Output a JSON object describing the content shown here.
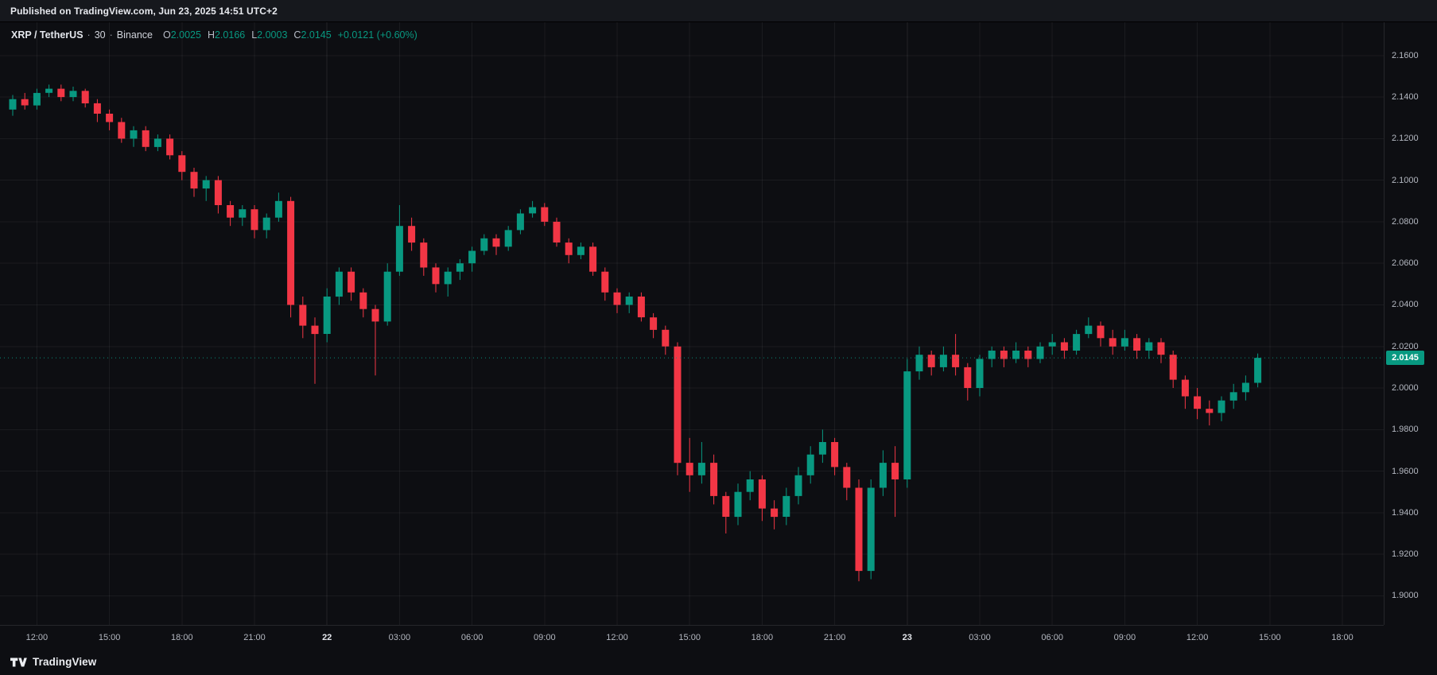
{
  "topbar": {
    "published_text": "Published on TradingView.com, Jun 23, 2025 14:51 UTC+2"
  },
  "header": {
    "symbol": "XRP / TetherUS",
    "separator": "·",
    "interval": "30",
    "exchange": "Binance",
    "ohlc": {
      "o_label": "O",
      "o_value": "2.0025",
      "h_label": "H",
      "h_value": "2.0166",
      "l_label": "L",
      "l_value": "2.0003",
      "c_label": "C",
      "c_value": "2.0145",
      "change_value": "+0.0121 (+0.60%)"
    }
  },
  "footer": {
    "logo_text": "TradingView"
  },
  "colors": {
    "up": "#089981",
    "down": "#f23645",
    "background": "#0d0e12",
    "topbar_bg": "#16181d",
    "grid": "rgba(255,255,255,0.055)",
    "grid_major": "rgba(255,255,255,0.09)",
    "axis_text": "#b4b8c1",
    "badge_bg": "#089981"
  },
  "time_scale": {
    "labels": [
      {
        "text": "12:00",
        "idx": 2,
        "major": false
      },
      {
        "text": "15:00",
        "idx": 8,
        "major": false
      },
      {
        "text": "18:00",
        "idx": 14,
        "major": false
      },
      {
        "text": "21:00",
        "idx": 20,
        "major": false
      },
      {
        "text": "22",
        "idx": 26,
        "major": true
      },
      {
        "text": "03:00",
        "idx": 32,
        "major": false
      },
      {
        "text": "06:00",
        "idx": 38,
        "major": false
      },
      {
        "text": "09:00",
        "idx": 44,
        "major": false
      },
      {
        "text": "12:00",
        "idx": 50,
        "major": false
      },
      {
        "text": "15:00",
        "idx": 56,
        "major": false
      },
      {
        "text": "18:00",
        "idx": 62,
        "major": false
      },
      {
        "text": "21:00",
        "idx": 68,
        "major": false
      },
      {
        "text": "23",
        "idx": 74,
        "major": true
      },
      {
        "text": "03:00",
        "idx": 80,
        "major": false
      },
      {
        "text": "06:00",
        "idx": 86,
        "major": false
      },
      {
        "text": "09:00",
        "idx": 92,
        "major": false
      },
      {
        "text": "12:00",
        "idx": 98,
        "major": false
      },
      {
        "text": "15:00",
        "idx": 104,
        "major": false
      },
      {
        "text": "18:00",
        "idx": 110,
        "major": false
      }
    ]
  },
  "chart_data": {
    "type": "candlestick",
    "title": "XRP / TetherUS · 30 · Binance",
    "bar_interval_minutes": 30,
    "last_bar_ohlc": {
      "open": 2.0025,
      "high": 2.0166,
      "low": 2.0003,
      "close": 2.0145
    },
    "last_price": {
      "text": "2.0145",
      "value": 2.0145
    },
    "change": {
      "abs": "+0.0121",
      "pct": "+0.60%"
    },
    "price_axis": {
      "view_max": 2.176,
      "view_min": 1.886,
      "ticks": [
        {
          "text": "2.1600",
          "value": 2.16
        },
        {
          "text": "2.1400",
          "value": 2.14
        },
        {
          "text": "2.1200",
          "value": 2.12
        },
        {
          "text": "2.1000",
          "value": 2.1
        },
        {
          "text": "2.0800",
          "value": 2.08
        },
        {
          "text": "2.0600",
          "value": 2.06
        },
        {
          "text": "2.0400",
          "value": 2.04
        },
        {
          "text": "2.0200",
          "value": 2.02
        },
        {
          "text": "2.0000",
          "value": 2.0
        },
        {
          "text": "1.9800",
          "value": 1.98
        },
        {
          "text": "1.9600",
          "value": 1.96
        },
        {
          "text": "1.9400",
          "value": 1.94
        },
        {
          "text": "1.9200",
          "value": 1.92
        },
        {
          "text": "1.9000",
          "value": 1.9
        }
      ]
    },
    "candles_format": [
      "open",
      "high",
      "low",
      "close"
    ],
    "candles": [
      [
        2.134,
        2.141,
        2.131,
        2.139
      ],
      [
        2.139,
        2.142,
        2.134,
        2.136
      ],
      [
        2.136,
        2.144,
        2.134,
        2.142
      ],
      [
        2.142,
        2.146,
        2.14,
        2.144
      ],
      [
        2.144,
        2.146,
        2.138,
        2.14
      ],
      [
        2.14,
        2.145,
        2.138,
        2.143
      ],
      [
        2.143,
        2.144,
        2.135,
        2.137
      ],
      [
        2.137,
        2.139,
        2.128,
        2.132
      ],
      [
        2.132,
        2.134,
        2.124,
        2.128
      ],
      [
        2.128,
        2.13,
        2.118,
        2.12
      ],
      [
        2.12,
        2.126,
        2.116,
        2.124
      ],
      [
        2.124,
        2.126,
        2.114,
        2.116
      ],
      [
        2.116,
        2.122,
        2.114,
        2.12
      ],
      [
        2.12,
        2.122,
        2.11,
        2.112
      ],
      [
        2.112,
        2.114,
        2.1,
        2.104
      ],
      [
        2.104,
        2.106,
        2.092,
        2.096
      ],
      [
        2.096,
        2.102,
        2.09,
        2.1
      ],
      [
        2.1,
        2.102,
        2.084,
        2.088
      ],
      [
        2.088,
        2.09,
        2.078,
        2.082
      ],
      [
        2.082,
        2.088,
        2.078,
        2.086
      ],
      [
        2.086,
        2.088,
        2.072,
        2.076
      ],
      [
        2.076,
        2.084,
        2.072,
        2.082
      ],
      [
        2.082,
        2.094,
        2.08,
        2.09
      ],
      [
        2.09,
        2.092,
        2.034,
        2.04
      ],
      [
        2.04,
        2.044,
        2.024,
        2.03
      ],
      [
        2.03,
        2.034,
        2.002,
        2.026
      ],
      [
        2.026,
        2.048,
        2.022,
        2.044
      ],
      [
        2.044,
        2.058,
        2.04,
        2.056
      ],
      [
        2.056,
        2.058,
        2.042,
        2.046
      ],
      [
        2.046,
        2.048,
        2.034,
        2.038
      ],
      [
        2.038,
        2.04,
        2.006,
        2.032
      ],
      [
        2.032,
        2.06,
        2.03,
        2.056
      ],
      [
        2.056,
        2.088,
        2.054,
        2.078
      ],
      [
        2.078,
        2.082,
        2.066,
        2.07
      ],
      [
        2.07,
        2.072,
        2.054,
        2.058
      ],
      [
        2.058,
        2.06,
        2.046,
        2.05
      ],
      [
        2.05,
        2.058,
        2.044,
        2.056
      ],
      [
        2.056,
        2.062,
        2.052,
        2.06
      ],
      [
        2.06,
        2.068,
        2.056,
        2.066
      ],
      [
        2.066,
        2.074,
        2.064,
        2.072
      ],
      [
        2.072,
        2.074,
        2.064,
        2.068
      ],
      [
        2.068,
        2.078,
        2.066,
        2.076
      ],
      [
        2.076,
        2.086,
        2.074,
        2.084
      ],
      [
        2.084,
        2.09,
        2.082,
        2.087
      ],
      [
        2.087,
        2.089,
        2.078,
        2.08
      ],
      [
        2.08,
        2.082,
        2.068,
        2.07
      ],
      [
        2.07,
        2.072,
        2.06,
        2.064
      ],
      [
        2.064,
        2.07,
        2.062,
        2.068
      ],
      [
        2.068,
        2.07,
        2.054,
        2.056
      ],
      [
        2.056,
        2.058,
        2.042,
        2.046
      ],
      [
        2.046,
        2.048,
        2.036,
        2.04
      ],
      [
        2.04,
        2.046,
        2.036,
        2.044
      ],
      [
        2.044,
        2.046,
        2.032,
        2.034
      ],
      [
        2.034,
        2.036,
        2.024,
        2.028
      ],
      [
        2.028,
        2.03,
        2.016,
        2.02
      ],
      [
        2.02,
        2.022,
        1.958,
        1.964
      ],
      [
        1.964,
        1.976,
        1.95,
        1.958
      ],
      [
        1.958,
        1.974,
        1.954,
        1.964
      ],
      [
        1.964,
        1.968,
        1.944,
        1.948
      ],
      [
        1.948,
        1.95,
        1.93,
        1.938
      ],
      [
        1.938,
        1.954,
        1.934,
        1.95
      ],
      [
        1.95,
        1.96,
        1.946,
        1.956
      ],
      [
        1.956,
        1.958,
        1.936,
        1.942
      ],
      [
        1.942,
        1.946,
        1.932,
        1.938
      ],
      [
        1.938,
        1.952,
        1.934,
        1.948
      ],
      [
        1.948,
        1.962,
        1.944,
        1.958
      ],
      [
        1.958,
        1.972,
        1.954,
        1.968
      ],
      [
        1.968,
        1.98,
        1.964,
        1.974
      ],
      [
        1.974,
        1.976,
        1.958,
        1.962
      ],
      [
        1.962,
        1.964,
        1.946,
        1.952
      ],
      [
        1.952,
        1.956,
        1.907,
        1.912
      ],
      [
        1.912,
        1.956,
        1.908,
        1.952
      ],
      [
        1.952,
        1.97,
        1.948,
        1.964
      ],
      [
        1.964,
        1.972,
        1.938,
        1.956
      ],
      [
        1.956,
        2.014,
        1.952,
        2.008
      ],
      [
        2.008,
        2.02,
        2.004,
        2.016
      ],
      [
        2.016,
        2.018,
        2.006,
        2.01
      ],
      [
        2.01,
        2.02,
        2.008,
        2.016
      ],
      [
        2.016,
        2.026,
        2.006,
        2.01
      ],
      [
        2.01,
        2.012,
        1.994,
        2.0
      ],
      [
        2.0,
        2.016,
        1.996,
        2.014
      ],
      [
        2.014,
        2.02,
        2.01,
        2.018
      ],
      [
        2.018,
        2.02,
        2.01,
        2.014
      ],
      [
        2.014,
        2.022,
        2.012,
        2.018
      ],
      [
        2.018,
        2.02,
        2.01,
        2.014
      ],
      [
        2.014,
        2.022,
        2.012,
        2.02
      ],
      [
        2.02,
        2.026,
        2.016,
        2.022
      ],
      [
        2.022,
        2.024,
        2.014,
        2.018
      ],
      [
        2.018,
        2.028,
        2.016,
        2.026
      ],
      [
        2.026,
        2.034,
        2.024,
        2.03
      ],
      [
        2.03,
        2.032,
        2.02,
        2.024
      ],
      [
        2.024,
        2.028,
        2.016,
        2.02
      ],
      [
        2.02,
        2.028,
        2.018,
        2.024
      ],
      [
        2.024,
        2.026,
        2.014,
        2.018
      ],
      [
        2.018,
        2.024,
        2.014,
        2.022
      ],
      [
        2.022,
        2.024,
        2.012,
        2.016
      ],
      [
        2.016,
        2.018,
        2.0,
        2.004
      ],
      [
        2.004,
        2.006,
        1.99,
        1.996
      ],
      [
        1.996,
        2.0,
        1.985,
        1.99
      ],
      [
        1.99,
        1.994,
        1.982,
        1.988
      ],
      [
        1.988,
        1.996,
        1.984,
        1.994
      ],
      [
        1.994,
        2.002,
        1.99,
        1.998
      ],
      [
        1.998,
        2.006,
        1.994,
        2.0025
      ],
      [
        2.0025,
        2.0166,
        2.0003,
        2.0145
      ]
    ]
  }
}
